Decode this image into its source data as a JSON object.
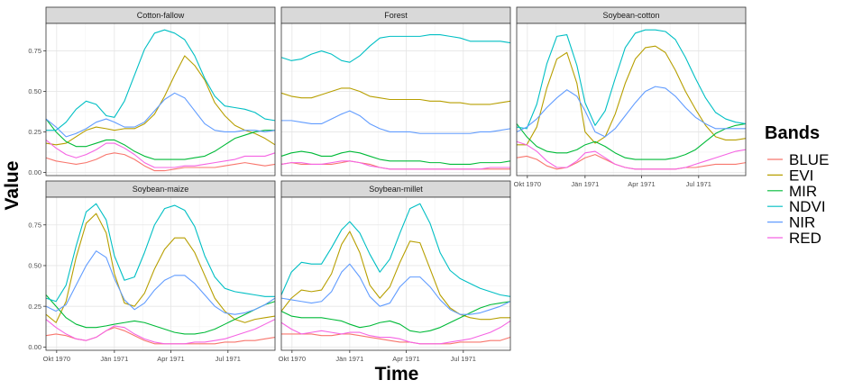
{
  "chart_data": {
    "type": "line",
    "x_label": "Time",
    "y_label": "Value",
    "legend_title": "Bands",
    "legend_position": "right",
    "grid": true,
    "ylim": [
      -0.02,
      0.92
    ],
    "y_ticks": [
      0.0,
      0.25,
      0.5,
      0.75
    ],
    "y_tick_labels": [
      "0.00",
      "0.25",
      "0.50",
      "0.75"
    ],
    "x_ticks": [
      "1970-10-01",
      "1971-01-01",
      "1971-04-01",
      "1971-07-01"
    ],
    "x_tick_labels": [
      "Okt 1970",
      "Jän 1971",
      "Apr 1971",
      "Jul 1971"
    ],
    "x_range": [
      "1970-09-14",
      "1971-09-14"
    ],
    "band_colors": {
      "BLUE": "#F8766D",
      "EVI": "#B79F00",
      "MIR": "#00BA38",
      "NDVI": "#00BFC4",
      "NIR": "#619CFF",
      "RED": "#F564E3"
    },
    "band_order": [
      "BLUE",
      "EVI",
      "MIR",
      "NDVI",
      "NIR",
      "RED"
    ],
    "panels": [
      {
        "title": "Cotton-fallow",
        "x": [
          "1970-09-14",
          "1970-09-30",
          "1970-10-16",
          "1970-11-01",
          "1970-11-17",
          "1970-12-03",
          "1970-12-19",
          "1971-01-01",
          "1971-01-17",
          "1971-02-02",
          "1971-02-18",
          "1971-03-06",
          "1971-03-22",
          "1971-04-07",
          "1971-04-23",
          "1971-05-09",
          "1971-05-25",
          "1971-06-10",
          "1971-06-26",
          "1971-07-12",
          "1971-07-28",
          "1971-08-13",
          "1971-08-29",
          "1971-09-14"
        ],
        "series": {
          "BLUE": [
            0.09,
            0.07,
            0.06,
            0.05,
            0.06,
            0.08,
            0.11,
            0.12,
            0.11,
            0.08,
            0.04,
            0.01,
            0.01,
            0.02,
            0.03,
            0.03,
            0.03,
            0.03,
            0.04,
            0.05,
            0.06,
            0.05,
            0.04,
            0.05
          ],
          "EVI": [
            0.18,
            0.17,
            0.18,
            0.22,
            0.26,
            0.28,
            0.27,
            0.26,
            0.27,
            0.27,
            0.3,
            0.36,
            0.47,
            0.6,
            0.72,
            0.66,
            0.57,
            0.43,
            0.35,
            0.29,
            0.26,
            0.24,
            0.21,
            0.17
          ],
          "MIR": [
            0.33,
            0.25,
            0.19,
            0.16,
            0.16,
            0.18,
            0.2,
            0.2,
            0.17,
            0.13,
            0.1,
            0.08,
            0.08,
            0.08,
            0.08,
            0.09,
            0.1,
            0.13,
            0.17,
            0.21,
            0.23,
            0.25,
            0.26,
            0.26
          ],
          "NDVI": [
            0.26,
            0.26,
            0.31,
            0.39,
            0.44,
            0.42,
            0.35,
            0.34,
            0.44,
            0.6,
            0.76,
            0.86,
            0.88,
            0.86,
            0.82,
            0.72,
            0.58,
            0.47,
            0.41,
            0.4,
            0.39,
            0.37,
            0.33,
            0.32
          ],
          "NIR": [
            0.33,
            0.28,
            0.22,
            0.24,
            0.27,
            0.31,
            0.33,
            0.31,
            0.28,
            0.28,
            0.31,
            0.38,
            0.45,
            0.49,
            0.46,
            0.38,
            0.3,
            0.26,
            0.25,
            0.25,
            0.26,
            0.26,
            0.25,
            0.26
          ],
          "RED": [
            0.2,
            0.15,
            0.11,
            0.09,
            0.11,
            0.14,
            0.18,
            0.18,
            0.15,
            0.11,
            0.06,
            0.03,
            0.03,
            0.03,
            0.04,
            0.04,
            0.05,
            0.06,
            0.07,
            0.08,
            0.1,
            0.1,
            0.1,
            0.12
          ]
        }
      },
      {
        "title": "Forest",
        "x": [
          "1970-09-14",
          "1970-09-30",
          "1970-10-16",
          "1970-11-01",
          "1970-11-17",
          "1970-12-03",
          "1970-12-19",
          "1971-01-01",
          "1971-01-17",
          "1971-02-02",
          "1971-02-18",
          "1971-03-06",
          "1971-03-22",
          "1971-04-07",
          "1971-04-23",
          "1971-05-09",
          "1971-05-25",
          "1971-06-10",
          "1971-06-26",
          "1971-07-12",
          "1971-07-28",
          "1971-08-13",
          "1971-08-29",
          "1971-09-14"
        ],
        "series": {
          "BLUE": [
            0.05,
            0.06,
            0.05,
            0.05,
            0.05,
            0.05,
            0.06,
            0.07,
            0.06,
            0.05,
            0.03,
            0.02,
            0.02,
            0.02,
            0.02,
            0.02,
            0.02,
            0.02,
            0.02,
            0.02,
            0.02,
            0.02,
            0.02,
            0.02
          ],
          "EVI": [
            0.49,
            0.47,
            0.46,
            0.46,
            0.48,
            0.5,
            0.52,
            0.52,
            0.5,
            0.47,
            0.46,
            0.45,
            0.45,
            0.45,
            0.45,
            0.44,
            0.44,
            0.43,
            0.43,
            0.42,
            0.42,
            0.42,
            0.43,
            0.44
          ],
          "MIR": [
            0.1,
            0.12,
            0.13,
            0.12,
            0.1,
            0.1,
            0.12,
            0.13,
            0.12,
            0.1,
            0.08,
            0.07,
            0.07,
            0.07,
            0.07,
            0.06,
            0.06,
            0.05,
            0.05,
            0.05,
            0.06,
            0.06,
            0.06,
            0.07
          ],
          "NDVI": [
            0.71,
            0.69,
            0.7,
            0.73,
            0.75,
            0.73,
            0.69,
            0.68,
            0.72,
            0.78,
            0.83,
            0.84,
            0.84,
            0.84,
            0.84,
            0.85,
            0.85,
            0.84,
            0.83,
            0.81,
            0.81,
            0.81,
            0.81,
            0.8
          ],
          "NIR": [
            0.32,
            0.32,
            0.31,
            0.3,
            0.3,
            0.33,
            0.36,
            0.38,
            0.35,
            0.3,
            0.27,
            0.25,
            0.25,
            0.25,
            0.24,
            0.24,
            0.24,
            0.24,
            0.24,
            0.24,
            0.25,
            0.25,
            0.26,
            0.27
          ],
          "RED": [
            0.05,
            0.06,
            0.06,
            0.05,
            0.05,
            0.06,
            0.07,
            0.07,
            0.06,
            0.04,
            0.03,
            0.02,
            0.02,
            0.02,
            0.02,
            0.02,
            0.02,
            0.02,
            0.02,
            0.02,
            0.02,
            0.03,
            0.03,
            0.03
          ]
        }
      },
      {
        "title": "Soybean-cotton",
        "x": [
          "1970-09-14",
          "1970-09-30",
          "1970-10-16",
          "1970-11-01",
          "1970-11-17",
          "1970-12-03",
          "1970-12-19",
          "1971-01-01",
          "1971-01-17",
          "1971-02-02",
          "1971-02-18",
          "1971-03-06",
          "1971-03-22",
          "1971-04-07",
          "1971-04-23",
          "1971-05-09",
          "1971-05-25",
          "1971-06-10",
          "1971-06-26",
          "1971-07-12",
          "1971-07-28",
          "1971-08-13",
          "1971-08-29",
          "1971-09-14"
        ],
        "series": {
          "BLUE": [
            0.09,
            0.1,
            0.08,
            0.04,
            0.02,
            0.03,
            0.06,
            0.09,
            0.11,
            0.08,
            0.05,
            0.03,
            0.02,
            0.02,
            0.02,
            0.02,
            0.02,
            0.03,
            0.03,
            0.04,
            0.05,
            0.05,
            0.05,
            0.06
          ],
          "EVI": [
            0.17,
            0.17,
            0.28,
            0.52,
            0.7,
            0.74,
            0.55,
            0.25,
            0.18,
            0.22,
            0.36,
            0.55,
            0.7,
            0.77,
            0.78,
            0.74,
            0.63,
            0.5,
            0.39,
            0.29,
            0.22,
            0.2,
            0.2,
            0.21
          ],
          "MIR": [
            0.3,
            0.22,
            0.16,
            0.13,
            0.12,
            0.12,
            0.14,
            0.17,
            0.19,
            0.16,
            0.12,
            0.09,
            0.08,
            0.08,
            0.08,
            0.08,
            0.09,
            0.11,
            0.14,
            0.19,
            0.24,
            0.27,
            0.29,
            0.3
          ],
          "NDVI": [
            0.28,
            0.27,
            0.42,
            0.67,
            0.84,
            0.85,
            0.66,
            0.43,
            0.29,
            0.38,
            0.58,
            0.77,
            0.86,
            0.88,
            0.88,
            0.87,
            0.82,
            0.71,
            0.58,
            0.46,
            0.37,
            0.33,
            0.31,
            0.3
          ],
          "NIR": [
            0.25,
            0.28,
            0.33,
            0.4,
            0.46,
            0.51,
            0.47,
            0.38,
            0.25,
            0.22,
            0.27,
            0.35,
            0.43,
            0.5,
            0.53,
            0.52,
            0.47,
            0.4,
            0.34,
            0.3,
            0.27,
            0.27,
            0.27,
            0.27
          ],
          "RED": [
            0.19,
            0.17,
            0.13,
            0.07,
            0.03,
            0.03,
            0.07,
            0.12,
            0.13,
            0.09,
            0.05,
            0.03,
            0.02,
            0.02,
            0.02,
            0.02,
            0.02,
            0.03,
            0.05,
            0.07,
            0.09,
            0.11,
            0.13,
            0.14
          ]
        }
      },
      {
        "title": "Soybean-maize",
        "x": [
          "1970-09-14",
          "1970-09-30",
          "1970-10-16",
          "1970-11-01",
          "1970-11-17",
          "1970-12-03",
          "1970-12-19",
          "1971-01-01",
          "1971-01-17",
          "1971-02-02",
          "1971-02-18",
          "1971-03-06",
          "1971-03-22",
          "1971-04-07",
          "1971-04-23",
          "1971-05-09",
          "1971-05-25",
          "1971-06-10",
          "1971-06-26",
          "1971-07-12",
          "1971-07-28",
          "1971-08-13",
          "1971-08-29",
          "1971-09-14"
        ],
        "series": {
          "BLUE": [
            0.07,
            0.08,
            0.07,
            0.05,
            0.04,
            0.06,
            0.1,
            0.12,
            0.1,
            0.07,
            0.04,
            0.02,
            0.02,
            0.02,
            0.02,
            0.02,
            0.02,
            0.02,
            0.03,
            0.03,
            0.04,
            0.04,
            0.05,
            0.06
          ],
          "EVI": [
            0.2,
            0.15,
            0.28,
            0.55,
            0.76,
            0.82,
            0.7,
            0.45,
            0.27,
            0.25,
            0.33,
            0.48,
            0.6,
            0.67,
            0.67,
            0.58,
            0.44,
            0.3,
            0.22,
            0.17,
            0.15,
            0.17,
            0.18,
            0.19
          ],
          "MIR": [
            0.32,
            0.25,
            0.18,
            0.14,
            0.12,
            0.12,
            0.13,
            0.14,
            0.15,
            0.16,
            0.15,
            0.13,
            0.11,
            0.09,
            0.08,
            0.08,
            0.09,
            0.11,
            0.14,
            0.17,
            0.2,
            0.23,
            0.26,
            0.28
          ],
          "NDVI": [
            0.3,
            0.28,
            0.38,
            0.62,
            0.83,
            0.88,
            0.78,
            0.56,
            0.41,
            0.43,
            0.58,
            0.75,
            0.85,
            0.87,
            0.84,
            0.74,
            0.56,
            0.43,
            0.36,
            0.34,
            0.33,
            0.32,
            0.31,
            0.31
          ],
          "NIR": [
            0.25,
            0.22,
            0.26,
            0.38,
            0.5,
            0.59,
            0.55,
            0.42,
            0.29,
            0.23,
            0.27,
            0.35,
            0.41,
            0.44,
            0.44,
            0.39,
            0.32,
            0.25,
            0.21,
            0.2,
            0.21,
            0.23,
            0.26,
            0.3
          ],
          "RED": [
            0.17,
            0.12,
            0.08,
            0.05,
            0.04,
            0.06,
            0.1,
            0.13,
            0.12,
            0.08,
            0.05,
            0.03,
            0.02,
            0.02,
            0.02,
            0.03,
            0.03,
            0.04,
            0.05,
            0.07,
            0.09,
            0.11,
            0.14,
            0.17
          ]
        }
      },
      {
        "title": "Soybean-millet",
        "x": [
          "1970-09-14",
          "1970-09-30",
          "1970-10-16",
          "1970-11-01",
          "1970-11-17",
          "1970-12-03",
          "1970-12-19",
          "1971-01-01",
          "1971-01-17",
          "1971-02-02",
          "1971-02-18",
          "1971-03-06",
          "1971-03-22",
          "1971-04-07",
          "1971-04-23",
          "1971-05-09",
          "1971-05-25",
          "1971-06-10",
          "1971-06-26",
          "1971-07-12",
          "1971-07-28",
          "1971-08-13",
          "1971-08-29",
          "1971-09-14"
        ],
        "series": {
          "BLUE": [
            0.08,
            0.08,
            0.08,
            0.08,
            0.07,
            0.07,
            0.08,
            0.08,
            0.07,
            0.06,
            0.05,
            0.04,
            0.03,
            0.03,
            0.02,
            0.02,
            0.02,
            0.02,
            0.03,
            0.03,
            0.03,
            0.04,
            0.04,
            0.06
          ],
          "EVI": [
            0.22,
            0.3,
            0.35,
            0.34,
            0.35,
            0.45,
            0.63,
            0.71,
            0.58,
            0.38,
            0.3,
            0.37,
            0.52,
            0.65,
            0.64,
            0.48,
            0.32,
            0.24,
            0.2,
            0.18,
            0.17,
            0.17,
            0.18,
            0.18
          ],
          "MIR": [
            0.22,
            0.19,
            0.18,
            0.18,
            0.18,
            0.17,
            0.16,
            0.14,
            0.12,
            0.13,
            0.15,
            0.16,
            0.14,
            0.1,
            0.09,
            0.1,
            0.12,
            0.15,
            0.18,
            0.21,
            0.24,
            0.26,
            0.27,
            0.28
          ],
          "NDVI": [
            0.32,
            0.46,
            0.52,
            0.51,
            0.51,
            0.61,
            0.72,
            0.77,
            0.7,
            0.57,
            0.46,
            0.54,
            0.7,
            0.85,
            0.88,
            0.76,
            0.58,
            0.47,
            0.42,
            0.39,
            0.36,
            0.34,
            0.32,
            0.31
          ],
          "NIR": [
            0.3,
            0.29,
            0.28,
            0.27,
            0.28,
            0.34,
            0.46,
            0.51,
            0.43,
            0.31,
            0.25,
            0.27,
            0.37,
            0.43,
            0.43,
            0.37,
            0.29,
            0.23,
            0.2,
            0.2,
            0.21,
            0.23,
            0.25,
            0.28
          ],
          "RED": [
            0.15,
            0.11,
            0.08,
            0.09,
            0.1,
            0.09,
            0.08,
            0.09,
            0.09,
            0.07,
            0.06,
            0.06,
            0.05,
            0.03,
            0.02,
            0.02,
            0.02,
            0.03,
            0.04,
            0.05,
            0.07,
            0.09,
            0.12,
            0.16
          ]
        }
      }
    ]
  }
}
